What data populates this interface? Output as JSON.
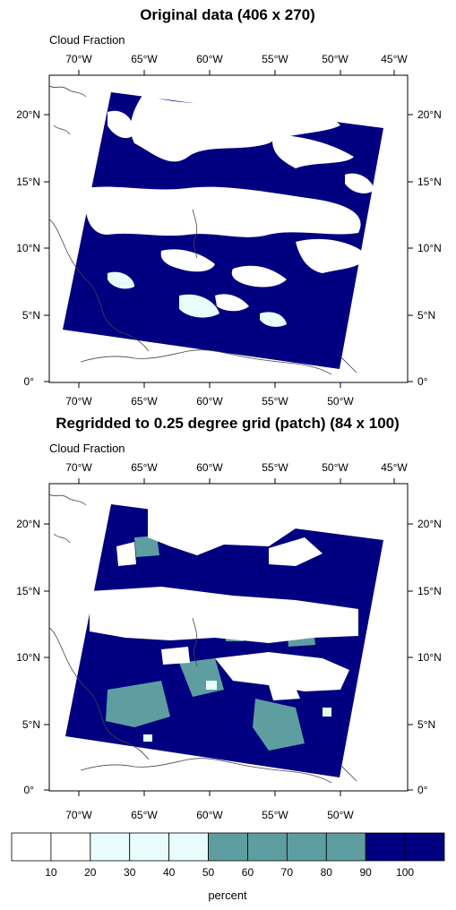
{
  "panels": [
    {
      "id": "original",
      "title": "Original data (406 x 270)",
      "variable_label": "Cloud Fraction",
      "top_ticks": [
        "70°W",
        "65°W",
        "60°W",
        "55°W",
        "50°W",
        "45°W"
      ],
      "bottom_ticks": [
        "70°W",
        "65°W",
        "60°W",
        "55°W",
        "50°W"
      ],
      "lat_ticks": [
        "20°N",
        "15°N",
        "10°N",
        "5°N",
        "0°"
      ]
    },
    {
      "id": "regridded",
      "title": "Regridded to 0.25 degree grid (patch) (84 x 100)",
      "variable_label": "Cloud Fraction",
      "top_ticks": [
        "70°W",
        "65°W",
        "60°W",
        "55°W",
        "50°W",
        "45°W"
      ],
      "bottom_ticks": [
        "70°W",
        "65°W",
        "60°W",
        "55°W",
        "50°W"
      ],
      "lat_ticks": [
        "20°N",
        "15°N",
        "10°N",
        "5°N",
        "0°"
      ]
    }
  ],
  "map_extent": {
    "lon": [
      -73,
      -44.5
    ],
    "lat": [
      0,
      23
    ]
  },
  "colorbar": {
    "units": "percent",
    "labels": [
      "10",
      "20",
      "30",
      "40",
      "50",
      "60",
      "70",
      "80",
      "90",
      "100"
    ],
    "colors": [
      "#ffffff",
      "#ffffff",
      "#e8fcfc",
      "#e8fcfc",
      "#e8fcfc",
      "#5f9ea0",
      "#5f9ea0",
      "#5f9ea0",
      "#5f9ea0",
      "#000080",
      "#000080"
    ]
  },
  "colors": {
    "navy": "#000080",
    "teal": "#5f9ea0",
    "coast": "#444444"
  }
}
